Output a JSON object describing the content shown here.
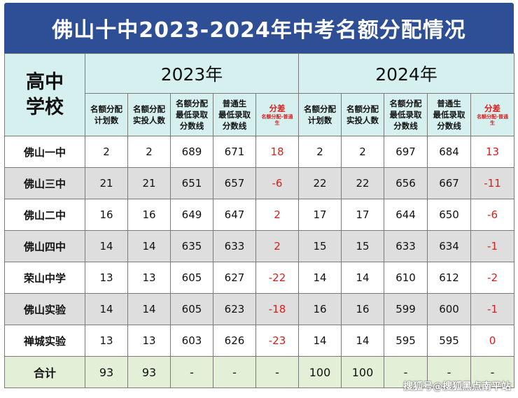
{
  "title": "佛山十中2023-2024年中考名额分配情况",
  "header": {
    "school_col": [
      "高中",
      "学校"
    ],
    "year_2023": "2023年",
    "year_2024": "2024年",
    "cols": [
      [
        "名额分配",
        "计划数"
      ],
      [
        "名额分配",
        "实投人数"
      ],
      [
        "名额分配",
        "最低录取",
        "分数线"
      ],
      [
        "普通生",
        "最低录取",
        "分数线"
      ]
    ],
    "diff_label": "分差",
    "diff_note": [
      "名额分配-普通",
      "生"
    ]
  },
  "rows": [
    {
      "name": "佛山一中",
      "y2023": [
        "2",
        "2",
        "689",
        "671",
        "18"
      ],
      "y2024": [
        "2",
        "2",
        "697",
        "684",
        "13"
      ]
    },
    {
      "name": "佛山三中",
      "y2023": [
        "21",
        "21",
        "651",
        "657",
        "-6"
      ],
      "y2024": [
        "22",
        "22",
        "656",
        "667",
        "-11"
      ]
    },
    {
      "name": "佛山二中",
      "y2023": [
        "16",
        "16",
        "649",
        "647",
        "2"
      ],
      "y2024": [
        "17",
        "17",
        "644",
        "650",
        "-6"
      ]
    },
    {
      "name": "佛山四中",
      "y2023": [
        "14",
        "14",
        "635",
        "633",
        "2"
      ],
      "y2024": [
        "15",
        "15",
        "633",
        "634",
        "-1"
      ]
    },
    {
      "name": "荣山中学",
      "y2023": [
        "13",
        "13",
        "605",
        "627",
        "-22"
      ],
      "y2024": [
        "14",
        "14",
        "610",
        "612",
        "-2"
      ]
    },
    {
      "name": "佛山实验",
      "y2023": [
        "14",
        "14",
        "605",
        "623",
        "-18"
      ],
      "y2024": [
        "16",
        "16",
        "599",
        "600",
        "-1"
      ]
    },
    {
      "name": "禅城实验",
      "y2023": [
        "13",
        "13",
        "603",
        "626",
        "-23"
      ],
      "y2024": [
        "14",
        "14",
        "595",
        "595",
        "0"
      ]
    }
  ],
  "total": {
    "name": "合计",
    "y2023": [
      "93",
      "93",
      "-",
      "-",
      "-"
    ],
    "y2024": [
      "100",
      "100",
      "-",
      "-",
      "-"
    ]
  },
  "watermark": "搜狐号@搜狐黑点南平站",
  "colors": {
    "title_bg": "#2e4f96",
    "header_bg": "#d6f0ef",
    "alt_row": "#dedede",
    "total_bg": "#e3f0d7",
    "diff_red": "#d81e1e"
  }
}
